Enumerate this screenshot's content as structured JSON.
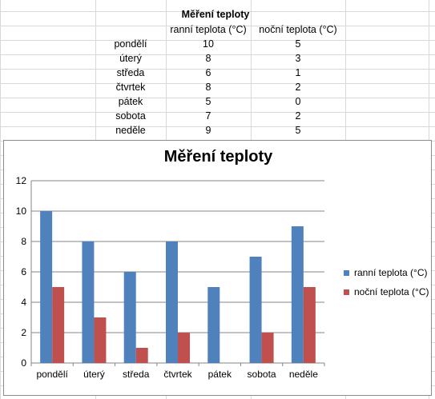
{
  "table": {
    "title": "Měření teploty",
    "headers": [
      "ranní teplota (°C)",
      "noční teplota (°C)"
    ],
    "rows": [
      {
        "day": "pondělí",
        "morning": "10",
        "night": "5"
      },
      {
        "day": "úterý",
        "morning": "8",
        "night": "3"
      },
      {
        "day": "středa",
        "morning": "6",
        "night": "1"
      },
      {
        "day": "čtvrtek",
        "morning": "8",
        "night": "2"
      },
      {
        "day": "pátek",
        "morning": "5",
        "night": "0"
      },
      {
        "day": "sobota",
        "morning": "7",
        "night": "2"
      },
      {
        "day": "neděle",
        "morning": "9",
        "night": "5"
      }
    ]
  },
  "chart_data": {
    "type": "bar",
    "title": "Měření teploty",
    "categories": [
      "pondělí",
      "úterý",
      "středa",
      "čtvrtek",
      "pátek",
      "sobota",
      "neděle"
    ],
    "series": [
      {
        "name": "ranní teplota (°C)",
        "values": [
          10,
          8,
          6,
          8,
          5,
          7,
          9
        ],
        "color": "#4f81bd"
      },
      {
        "name": "noční teplota (°C)",
        "values": [
          5,
          3,
          1,
          2,
          0,
          2,
          5
        ],
        "color": "#c0504d"
      }
    ],
    "ylim": [
      0,
      12
    ],
    "yticks": [
      "0",
      "2",
      "4",
      "6",
      "8",
      "10",
      "12"
    ],
    "grid": true,
    "legend_position": "right"
  }
}
